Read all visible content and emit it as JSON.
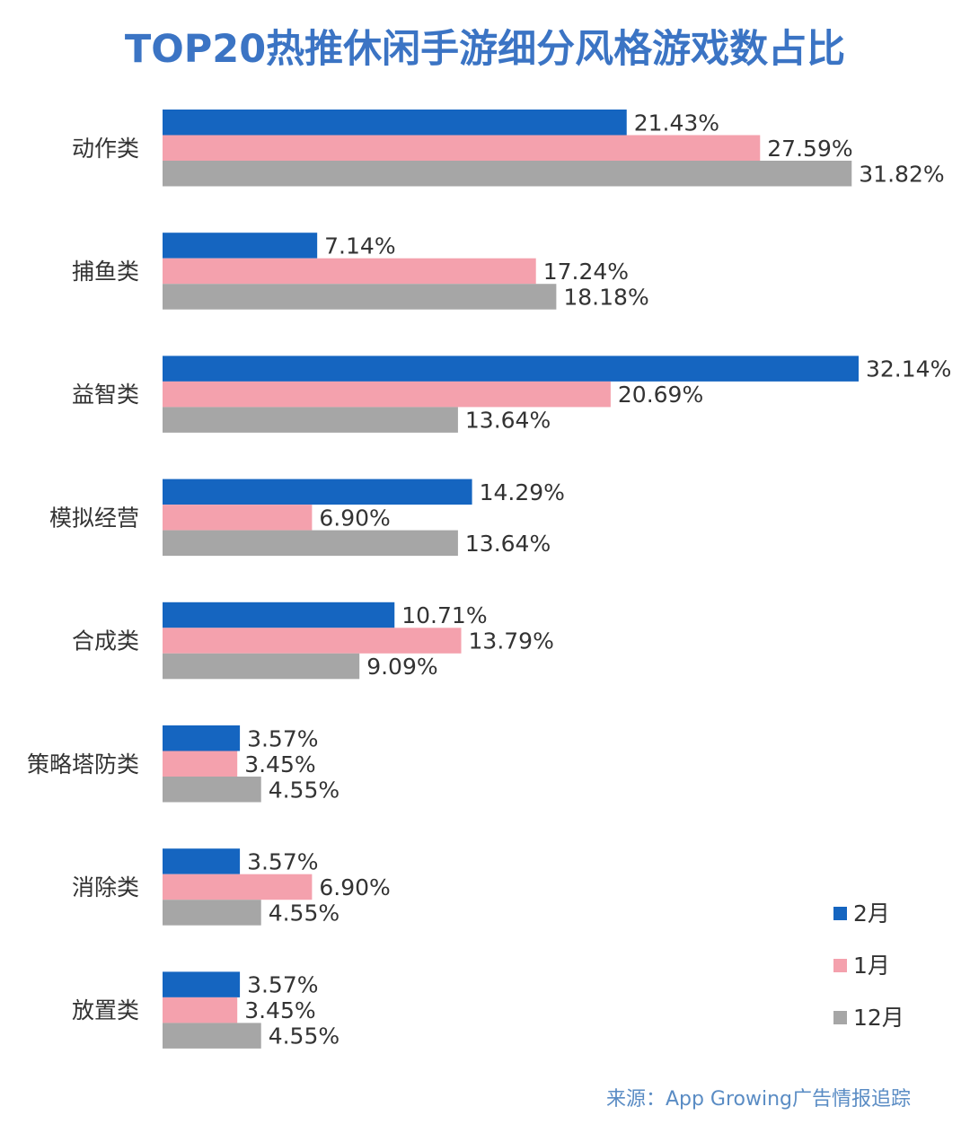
{
  "chart_data": {
    "type": "bar",
    "orientation": "horizontal",
    "title": "TOP20热推休闲手游细分风格游戏数占比",
    "categories": [
      "动作类",
      "捕鱼类",
      "益智类",
      "模拟经营",
      "合成类",
      "策略塔防类",
      "消除类",
      "放置类"
    ],
    "series": [
      {
        "name": "2月",
        "color": "#1565c0",
        "values": [
          21.43,
          7.14,
          32.14,
          14.29,
          10.71,
          3.57,
          3.57,
          3.57
        ],
        "labels": [
          "21.43%",
          "7.14%",
          "32.14%",
          "14.29%",
          "10.71%",
          "3.57%",
          "3.57%",
          "3.57%"
        ]
      },
      {
        "name": "1月",
        "color": "#f4a1ad",
        "values": [
          27.59,
          17.24,
          20.69,
          6.9,
          13.79,
          3.45,
          6.9,
          3.45
        ],
        "labels": [
          "27.59%",
          "17.24%",
          "20.69%",
          "6.90%",
          "13.79%",
          "3.45%",
          "6.90%",
          "3.45%"
        ]
      },
      {
        "name": "12月",
        "color": "#a6a6a6",
        "values": [
          31.82,
          18.18,
          13.64,
          13.64,
          9.09,
          4.55,
          4.55,
          4.55
        ],
        "labels": [
          "31.82%",
          "18.18%",
          "13.64%",
          "13.64%",
          "9.09%",
          "4.55%",
          "4.55%",
          "4.55%"
        ]
      }
    ],
    "xlim": [
      0,
      32.14
    ],
    "legend": "bottom-right",
    "grid": false,
    "xlabel": "",
    "ylabel": ""
  },
  "source": "来源：App Growing广告情报追踪"
}
